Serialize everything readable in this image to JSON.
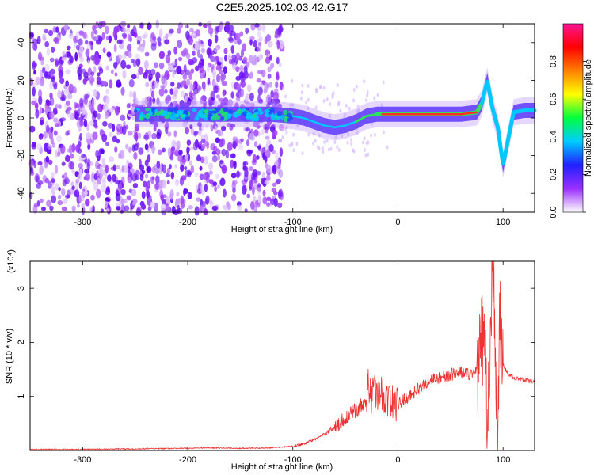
{
  "title": "C2E5.2025.102.03.42.G17",
  "chart_data": [
    {
      "type": "heatmap",
      "xlabel": "Height of straight line (km)",
      "ylabel": "Frequency (Hz)",
      "xlim": [
        -350,
        130
      ],
      "ylim": [
        -50,
        50
      ],
      "xticks": [
        -300,
        -200,
        -100,
        0,
        100
      ],
      "yticks": [
        -40,
        -20,
        0,
        20,
        40
      ],
      "colorbar": {
        "label": "Normalized spectral amplitude",
        "range": [
          0,
          1
        ],
        "ticks": [
          "0.0",
          "0.2",
          "0.4",
          "0.6",
          "0.8"
        ],
        "colors": [
          "#ffffff",
          "#9a2fff",
          "#2020ff",
          "#00ccff",
          "#00ff40",
          "#ffff00",
          "#ff8000",
          "#ff0000",
          "#ff1493"
        ]
      },
      "ridge": {
        "x": [
          -250,
          -200,
          -150,
          -120,
          -100,
          -90,
          -80,
          -70,
          -60,
          -50,
          -40,
          -30,
          -20,
          -10,
          0,
          20,
          40,
          60,
          75,
          80,
          85,
          90,
          95,
          100,
          110,
          120,
          130
        ],
        "y": [
          2,
          2,
          2,
          2,
          1,
          0,
          -2,
          -4,
          -5,
          -4,
          -2,
          1,
          2,
          2,
          2,
          2,
          2,
          2,
          3,
          8,
          20,
          5,
          -5,
          -25,
          3,
          4,
          4
        ]
      },
      "noise_region_x": [
        -350,
        -110
      ]
    },
    {
      "type": "line",
      "xlabel": "Height of straight line (km)",
      "ylabel": "SNR (10 * v/v)",
      "y_multiplier": "(x10⁴)",
      "xlim": [
        -350,
        130
      ],
      "ylim": [
        0,
        3.5
      ],
      "xticks": [
        -300,
        -200,
        -100,
        0,
        100
      ],
      "yticks": [
        1,
        2,
        3
      ],
      "series": [
        {
          "color": "#ee3333",
          "x": [
            -350,
            -300,
            -250,
            -200,
            -180,
            -150,
            -120,
            -100,
            -90,
            -80,
            -70,
            -60,
            -50,
            -40,
            -30,
            -28,
            -25,
            -20,
            -10,
            0,
            10,
            20,
            30,
            40,
            50,
            60,
            70,
            75,
            80,
            83,
            85,
            87,
            90,
            92,
            95,
            97,
            100,
            105,
            110,
            120,
            130
          ],
          "y": [
            0.02,
            0.02,
            0.03,
            0.04,
            0.05,
            0.04,
            0.05,
            0.08,
            0.12,
            0.2,
            0.3,
            0.45,
            0.6,
            0.75,
            0.9,
            1.3,
            1.0,
            1.1,
            0.95,
            0.85,
            1.0,
            1.15,
            1.3,
            1.35,
            1.4,
            1.45,
            1.4,
            1.5,
            2.0,
            2.3,
            0.2,
            1.7,
            3.5,
            2.4,
            0.1,
            2.5,
            1.6,
            1.4,
            1.35,
            1.3,
            1.28
          ]
        }
      ]
    }
  ]
}
